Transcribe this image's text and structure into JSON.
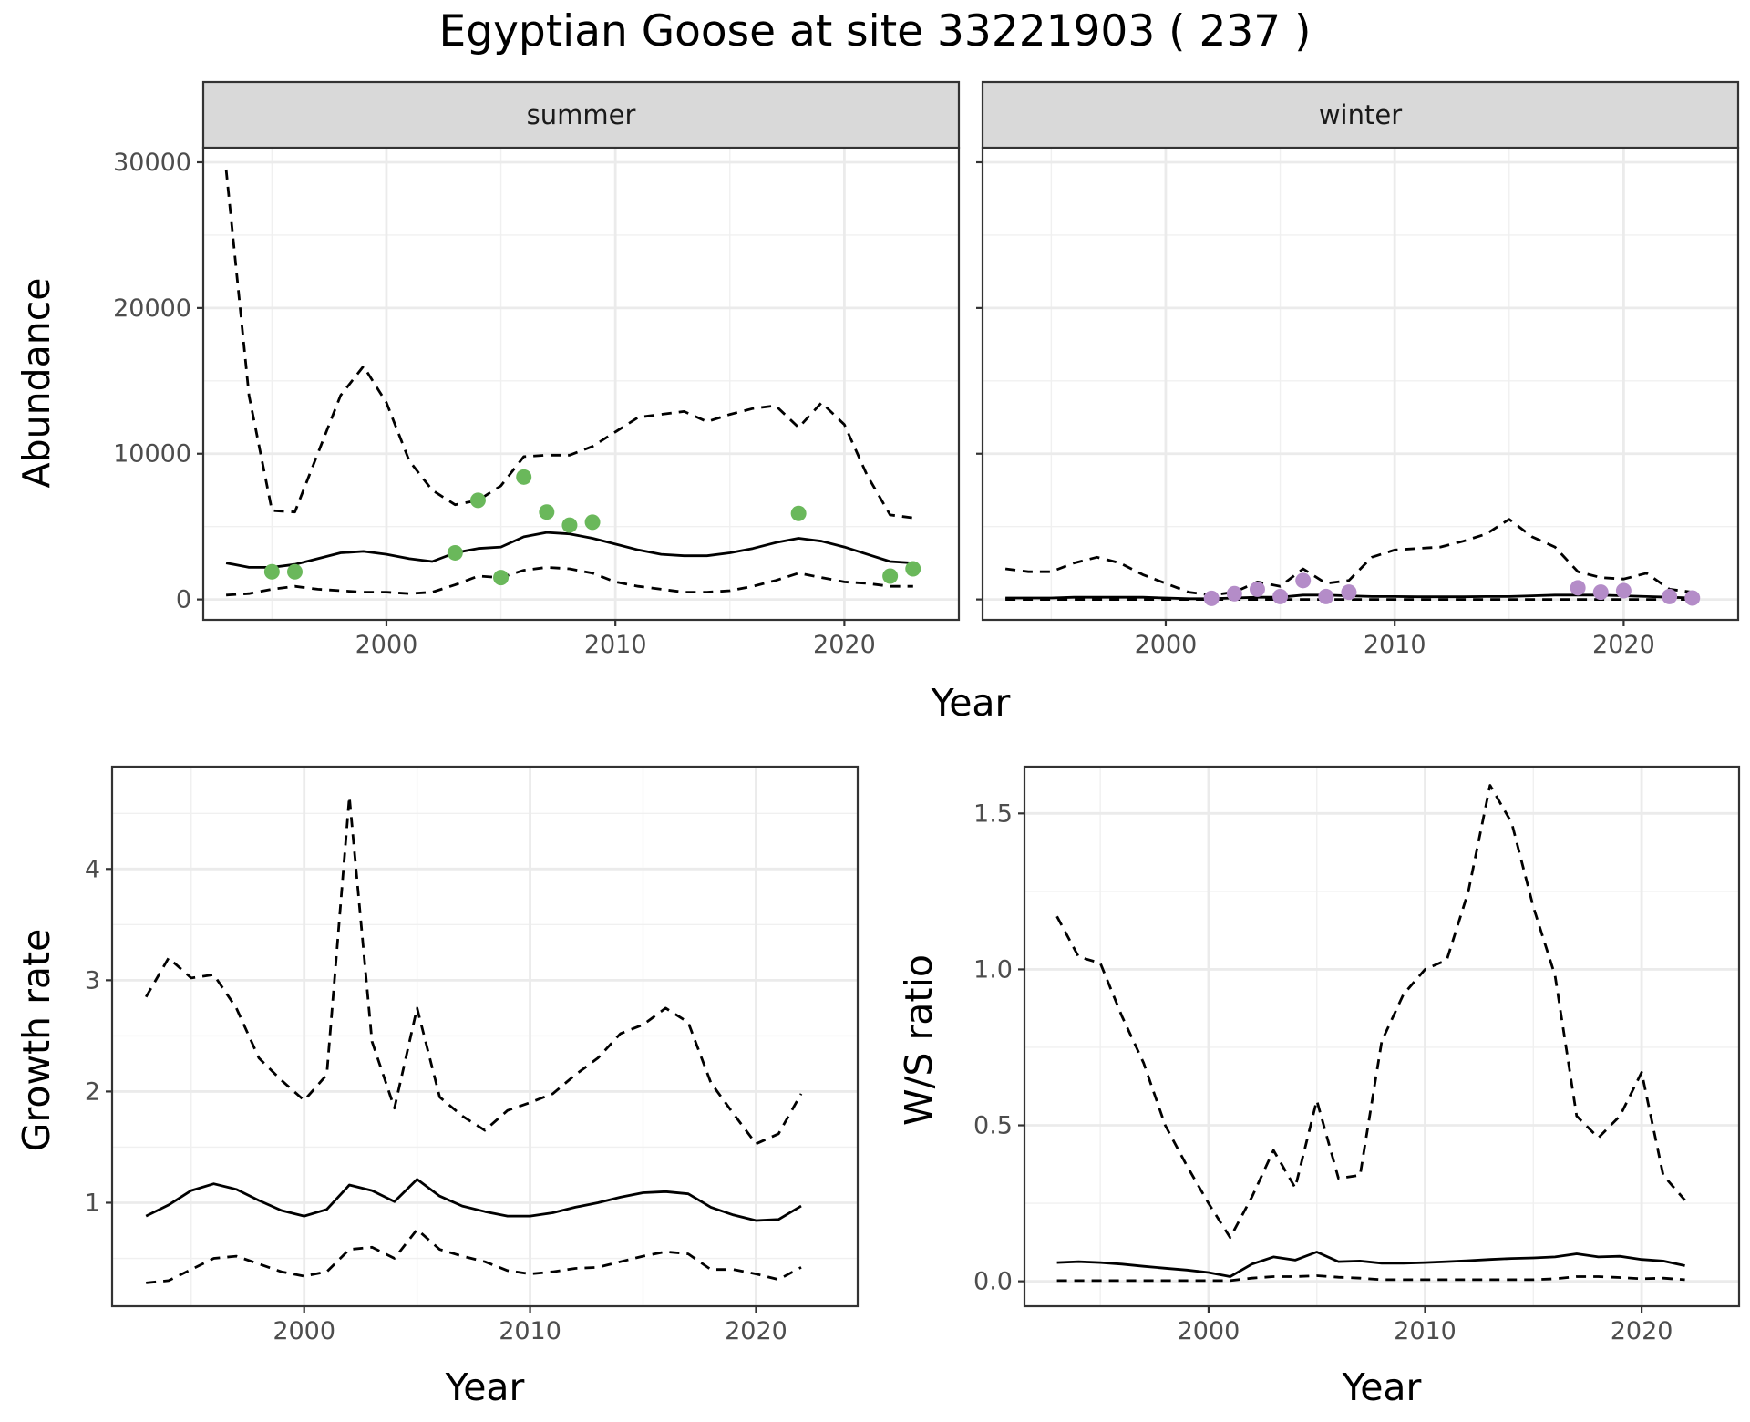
{
  "title": "Egyptian Goose at site 33221903 ( 237 )",
  "colors": {
    "summer_points": "#6ab85b",
    "winter_points": "#b48cc8",
    "lines": "#000000",
    "strip_bg": "#d9d9d9"
  },
  "chart_data": [
    {
      "type": "line",
      "panel": "summer",
      "strip": "summer",
      "xlabel": "Year",
      "ylabel": "Abundance",
      "xlim": [
        1992,
        2025
      ],
      "ylim": [
        -1400,
        31000
      ],
      "xticks": [
        2000,
        2010,
        2020
      ],
      "yticks": [
        0,
        10000,
        20000,
        30000
      ],
      "fit": {
        "x": [
          1993,
          1994,
          1995,
          1996,
          1997,
          1998,
          1999,
          2000,
          2001,
          2002,
          2003,
          2004,
          2005,
          2006,
          2007,
          2008,
          2009,
          2010,
          2011,
          2012,
          2013,
          2014,
          2015,
          2016,
          2017,
          2018,
          2019,
          2020,
          2021,
          2022,
          2023
        ],
        "mid": [
          2500,
          2200,
          2200,
          2400,
          2800,
          3200,
          3300,
          3100,
          2800,
          2600,
          3200,
          3500,
          3600,
          4300,
          4600,
          4500,
          4200,
          3800,
          3400,
          3100,
          3000,
          3000,
          3200,
          3500,
          3900,
          4200,
          4000,
          3600,
          3100,
          2600,
          2500
        ],
        "upper": [
          29500,
          14000,
          6100,
          6000,
          10000,
          14000,
          16000,
          13500,
          9500,
          7500,
          6500,
          6800,
          7800,
          9800,
          9900,
          9900,
          10500,
          11500,
          12500,
          12700,
          12900,
          12200,
          12700,
          13100,
          13300,
          11800,
          13500,
          12000,
          8500,
          5800,
          5600
        ],
        "lower": [
          300,
          400,
          700,
          900,
          700,
          600,
          500,
          500,
          400,
          500,
          1000,
          1600,
          1500,
          2000,
          2200,
          2100,
          1800,
          1200,
          900,
          700,
          500,
          500,
          600,
          900,
          1300,
          1800,
          1500,
          1200,
          1100,
          900,
          900
        ]
      },
      "points": {
        "x": [
          1995,
          1996,
          2003,
          2004,
          2005,
          2006,
          2007,
          2008,
          2009,
          2018,
          2022,
          2023
        ],
        "y": [
          1900,
          1900,
          3200,
          6800,
          1500,
          8400,
          6000,
          5100,
          5300,
          5900,
          1600,
          2100
        ]
      }
    },
    {
      "type": "line",
      "panel": "winter",
      "strip": "winter",
      "xlabel": "Year",
      "ylabel": "",
      "xlim": [
        1992,
        2025
      ],
      "ylim": [
        -1400,
        31000
      ],
      "xticks": [
        2000,
        2010,
        2020
      ],
      "yticks": [
        0,
        10000,
        20000,
        30000
      ],
      "fit": {
        "x": [
          1993,
          1994,
          1995,
          1996,
          1997,
          1998,
          1999,
          2000,
          2001,
          2002,
          2003,
          2004,
          2005,
          2006,
          2007,
          2008,
          2009,
          2010,
          2011,
          2012,
          2013,
          2014,
          2015,
          2016,
          2017,
          2018,
          2019,
          2020,
          2021,
          2022,
          2023
        ],
        "mid": [
          100,
          100,
          100,
          150,
          150,
          150,
          150,
          100,
          50,
          50,
          100,
          150,
          150,
          300,
          300,
          250,
          200,
          200,
          180,
          180,
          180,
          200,
          200,
          250,
          300,
          300,
          300,
          250,
          200,
          150,
          100
        ],
        "upper": [
          2100,
          1900,
          1900,
          2500,
          2900,
          2500,
          1700,
          1100,
          500,
          300,
          500,
          1200,
          900,
          2100,
          1100,
          1300,
          2900,
          3400,
          3500,
          3600,
          4000,
          4500,
          5500,
          4300,
          3600,
          1900,
          1500,
          1400,
          1800,
          700,
          500
        ],
        "lower": [
          0,
          0,
          0,
          0,
          0,
          0,
          0,
          0,
          0,
          0,
          0,
          0,
          0,
          0,
          0,
          0,
          0,
          0,
          0,
          0,
          0,
          0,
          0,
          0,
          0,
          0,
          0,
          0,
          0,
          0,
          0
        ]
      },
      "points": {
        "x": [
          2002,
          2003,
          2004,
          2005,
          2006,
          2007,
          2008,
          2018,
          2019,
          2020,
          2022,
          2023
        ],
        "y": [
          80,
          400,
          700,
          200,
          1300,
          200,
          500,
          800,
          500,
          600,
          200,
          100
        ]
      }
    },
    {
      "type": "line",
      "panel": "growth",
      "xlabel": "Year",
      "ylabel": "Growth rate",
      "xlim": [
        1991.5,
        2024.5
      ],
      "ylim": [
        0.07,
        4.92
      ],
      "xticks": [
        2000,
        2010,
        2020
      ],
      "yticks": [
        1,
        2,
        3,
        4
      ],
      "fit": {
        "x": [
          1993,
          1994,
          1995,
          1996,
          1997,
          1998,
          1999,
          2000,
          2001,
          2002,
          2003,
          2004,
          2005,
          2006,
          2007,
          2008,
          2009,
          2010,
          2011,
          2012,
          2013,
          2014,
          2015,
          2016,
          2017,
          2018,
          2019,
          2020,
          2021,
          2022
        ],
        "mid": [
          0.88,
          0.98,
          1.11,
          1.17,
          1.12,
          1.02,
          0.93,
          0.88,
          0.94,
          1.16,
          1.11,
          1.01,
          1.21,
          1.06,
          0.97,
          0.92,
          0.88,
          0.88,
          0.91,
          0.96,
          1.0,
          1.05,
          1.09,
          1.1,
          1.08,
          0.96,
          0.89,
          0.84,
          0.85,
          0.97
        ],
        "upper": [
          2.85,
          3.2,
          3.02,
          3.05,
          2.75,
          2.3,
          2.1,
          1.92,
          2.15,
          4.65,
          2.45,
          1.85,
          2.75,
          1.95,
          1.78,
          1.65,
          1.83,
          1.9,
          1.98,
          2.15,
          2.3,
          2.52,
          2.6,
          2.75,
          2.62,
          2.08,
          1.8,
          1.53,
          1.62,
          1.98
        ],
        "lower": [
          0.28,
          0.3,
          0.4,
          0.5,
          0.52,
          0.45,
          0.38,
          0.34,
          0.38,
          0.58,
          0.6,
          0.5,
          0.76,
          0.58,
          0.52,
          0.47,
          0.39,
          0.36,
          0.38,
          0.41,
          0.42,
          0.47,
          0.52,
          0.56,
          0.54,
          0.4,
          0.4,
          0.36,
          0.31,
          0.42
        ]
      }
    },
    {
      "type": "line",
      "panel": "ratio",
      "xlabel": "Year",
      "ylabel": "W/S ratio",
      "xlim": [
        1991.5,
        2024.5
      ],
      "ylim": [
        -0.08,
        1.65
      ],
      "xticks": [
        2000,
        2010,
        2020
      ],
      "yticks": [
        0.0,
        0.5,
        1.0,
        1.5
      ],
      "ytick_labels": [
        "0.0",
        "0.5",
        "1.0",
        "1.5"
      ],
      "fit": {
        "x": [
          1993,
          1994,
          1995,
          1996,
          1997,
          1998,
          1999,
          2000,
          2001,
          2002,
          2003,
          2004,
          2005,
          2006,
          2007,
          2008,
          2009,
          2010,
          2011,
          2012,
          2013,
          2014,
          2015,
          2016,
          2017,
          2018,
          2019,
          2020,
          2021,
          2022
        ],
        "mid": [
          0.06,
          0.063,
          0.06,
          0.055,
          0.048,
          0.042,
          0.036,
          0.028,
          0.015,
          0.055,
          0.078,
          0.068,
          0.094,
          0.063,
          0.065,
          0.058,
          0.058,
          0.06,
          0.063,
          0.066,
          0.07,
          0.073,
          0.075,
          0.078,
          0.088,
          0.078,
          0.08,
          0.07,
          0.065,
          0.05
        ],
        "upper": [
          1.17,
          1.04,
          1.02,
          0.85,
          0.7,
          0.5,
          0.37,
          0.25,
          0.14,
          0.27,
          0.42,
          0.3,
          0.58,
          0.33,
          0.34,
          0.77,
          0.92,
          1.0,
          1.03,
          1.25,
          1.59,
          1.47,
          1.2,
          0.98,
          0.53,
          0.46,
          0.53,
          0.67,
          0.34,
          0.26
        ],
        "lower": [
          0.002,
          0.002,
          0.002,
          0.002,
          0.002,
          0.002,
          0.002,
          0.002,
          0.002,
          0.01,
          0.015,
          0.015,
          0.018,
          0.013,
          0.01,
          0.005,
          0.005,
          0.005,
          0.005,
          0.005,
          0.005,
          0.005,
          0.005,
          0.008,
          0.015,
          0.015,
          0.012,
          0.008,
          0.01,
          0.005
        ]
      }
    }
  ]
}
